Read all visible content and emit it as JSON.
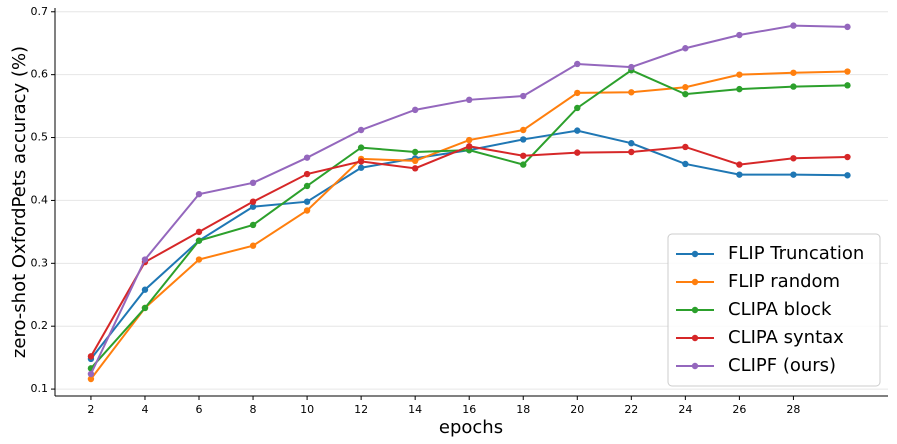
{
  "chart_data": {
    "type": "line",
    "x_label": "epochs",
    "y_label": "zero-shot OxfordPets accuracy (%)",
    "x": [
      2,
      4,
      6,
      8,
      10,
      12,
      14,
      16,
      18,
      20,
      22,
      24,
      26,
      28,
      30
    ],
    "xlim": [
      0.67,
      31.5
    ],
    "xticks": [
      2,
      4,
      6,
      8,
      10,
      12,
      14,
      16,
      18,
      20,
      22,
      24,
      26,
      28
    ],
    "ylim": [
      0.089,
      0.706
    ],
    "yticks": [
      0.1,
      0.2,
      0.3,
      0.4,
      0.5,
      0.6,
      0.7
    ],
    "grid": true,
    "legend": "lower right",
    "series": [
      {
        "name": "FLIP Truncation",
        "color": "#1f77b4",
        "values": [
          0.148,
          0.258,
          0.336,
          0.39,
          0.398,
          0.452,
          0.467,
          0.48,
          0.497,
          0.511,
          0.491,
          0.458,
          0.441,
          0.441,
          0.44
        ]
      },
      {
        "name": "FLIP random",
        "color": "#ff7f0e",
        "values": [
          0.116,
          0.229,
          0.306,
          0.328,
          0.384,
          0.466,
          0.463,
          0.496,
          0.512,
          0.571,
          0.572,
          0.58,
          0.6,
          0.603,
          0.605
        ]
      },
      {
        "name": "CLIPA block",
        "color": "#2ca02c",
        "values": [
          0.133,
          0.229,
          0.336,
          0.361,
          0.423,
          0.484,
          0.477,
          0.48,
          0.457,
          0.547,
          0.607,
          0.569,
          0.577,
          0.581,
          0.583
        ]
      },
      {
        "name": "CLIPA syntax",
        "color": "#d62728",
        "values": [
          0.152,
          0.302,
          0.35,
          0.398,
          0.442,
          0.462,
          0.451,
          0.486,
          0.471,
          0.476,
          0.477,
          0.485,
          0.457,
          0.467,
          0.469
        ]
      },
      {
        "name": "CLIPF (ours)",
        "color": "#9467bd",
        "values": [
          0.124,
          0.306,
          0.41,
          0.428,
          0.468,
          0.512,
          0.544,
          0.56,
          0.566,
          0.617,
          0.612,
          0.642,
          0.663,
          0.678,
          0.676
        ]
      }
    ]
  }
}
